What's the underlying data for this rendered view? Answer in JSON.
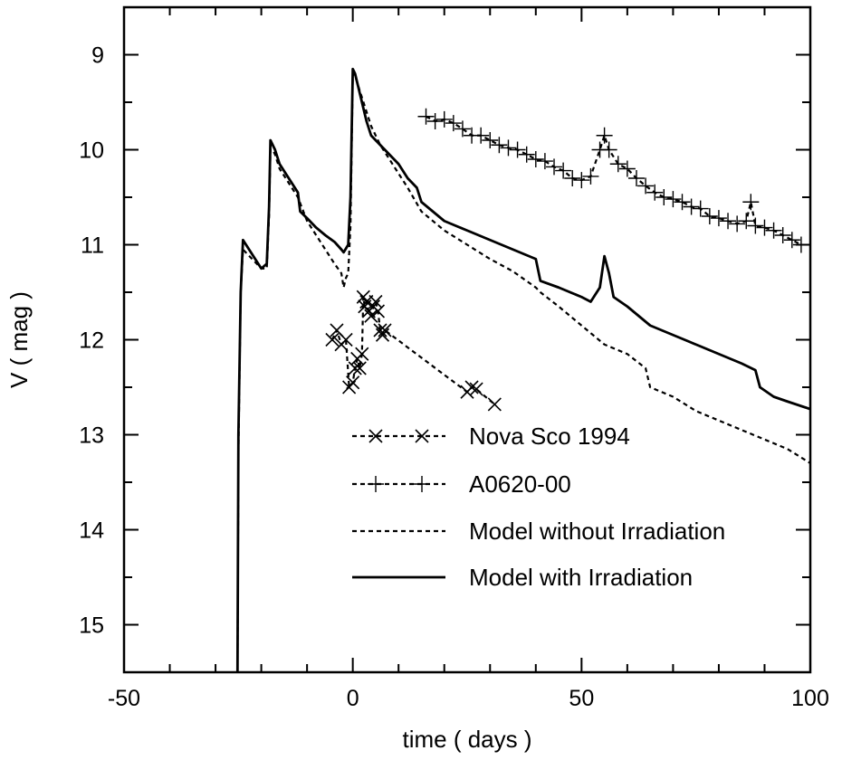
{
  "chart_data": {
    "type": "line",
    "xlabel": "time ( days )",
    "ylabel": "V ( mag )",
    "xlim": [
      -50,
      100
    ],
    "ylim": [
      15.5,
      8.5
    ],
    "y_inverted": true,
    "grid": false,
    "x_ticks": [
      -50,
      0,
      50,
      100
    ],
    "x_tick_labels": [
      "-50",
      "0",
      "50",
      "100"
    ],
    "y_ticks": [
      9,
      10,
      11,
      12,
      13,
      14,
      15
    ],
    "y_tick_labels": [
      "9",
      "10",
      "11",
      "12",
      "13",
      "14",
      "15"
    ],
    "legend_position": "lower-right",
    "series": [
      {
        "name": "Nova Sco 1994",
        "style": "dashed-x-markers",
        "x": [
          -4.5,
          -3.5,
          -2.5,
          -1.5,
          -0.8,
          0.0,
          0.5,
          1.0,
          1.5,
          2.0,
          2.3,
          2.6,
          3.0,
          3.5,
          4.0,
          4.5,
          5.0,
          5.5,
          6.0,
          6.5,
          7.0,
          25.0,
          26.0,
          27.0,
          31.0
        ],
        "y": [
          12.0,
          11.9,
          12.05,
          12.0,
          12.5,
          12.45,
          12.3,
          12.2,
          12.3,
          12.15,
          11.55,
          11.65,
          11.6,
          11.7,
          11.75,
          11.65,
          11.6,
          11.7,
          11.9,
          11.95,
          11.9,
          12.55,
          12.5,
          12.52,
          12.68
        ]
      },
      {
        "name": "A0620-00",
        "style": "dashed-plus-markers",
        "x": [
          16,
          18,
          20,
          22,
          24,
          26,
          28,
          30,
          32,
          34,
          36,
          38,
          40,
          42,
          44,
          46,
          48,
          50,
          52,
          54,
          55,
          56,
          58,
          60,
          62,
          64,
          66,
          68,
          70,
          72,
          74,
          76,
          78,
          80,
          82,
          84,
          86,
          87,
          88,
          90,
          92,
          94,
          96,
          98
        ],
        "y": [
          9.65,
          9.7,
          9.68,
          9.72,
          9.78,
          9.85,
          9.85,
          9.9,
          9.95,
          9.98,
          10.0,
          10.05,
          10.1,
          10.12,
          10.18,
          10.22,
          10.3,
          10.32,
          10.28,
          10.0,
          9.85,
          10.0,
          10.15,
          10.2,
          10.3,
          10.38,
          10.45,
          10.5,
          10.52,
          10.55,
          10.6,
          10.62,
          10.7,
          10.72,
          10.75,
          10.78,
          10.75,
          10.55,
          10.8,
          10.82,
          10.85,
          10.9,
          10.95,
          11.0
        ]
      },
      {
        "name": "Model without Irradiation",
        "style": "dashed",
        "x": [
          -25.2,
          -25.0,
          -24.5,
          -24,
          -22,
          -20,
          -18.8,
          -18.3,
          -18.0,
          -17.5,
          -17,
          -16,
          -14,
          -12,
          -10,
          -8,
          -6,
          -4,
          -2.5,
          -2,
          -1.5,
          -1,
          -0.5,
          0,
          0.5,
          1,
          2,
          3,
          4,
          6,
          8,
          10,
          12,
          15,
          20,
          25,
          30,
          35,
          40,
          41,
          45,
          50,
          55,
          60,
          64,
          65,
          70,
          75,
          80,
          85,
          90,
          95,
          100
        ],
        "y": [
          15.5,
          13.2,
          11.5,
          11.05,
          11.15,
          11.25,
          11.25,
          10.7,
          10.0,
          10.0,
          10.05,
          10.2,
          10.35,
          10.5,
          10.75,
          10.9,
          11.05,
          11.2,
          11.3,
          11.45,
          11.35,
          11.3,
          10.8,
          9.2,
          9.22,
          9.3,
          9.45,
          9.6,
          9.75,
          9.95,
          10.1,
          10.25,
          10.4,
          10.65,
          10.85,
          11.0,
          11.15,
          11.28,
          11.45,
          11.5,
          11.65,
          11.85,
          12.05,
          12.15,
          12.3,
          12.5,
          12.6,
          12.75,
          12.85,
          12.95,
          13.05,
          13.15,
          13.3
        ]
      },
      {
        "name": "Model with Irradiation",
        "style": "solid",
        "x": [
          -25.2,
          -25.0,
          -24.5,
          -24,
          -22,
          -20,
          -18.8,
          -18.3,
          -18.0,
          -17.5,
          -17,
          -16,
          -14,
          -12,
          -11.5,
          -10,
          -8,
          -6,
          -4,
          -2.5,
          -2,
          -1,
          -0.5,
          0,
          0.5,
          1,
          2,
          3,
          4,
          6,
          8,
          10,
          12,
          14,
          15,
          20,
          25,
          30,
          35,
          40,
          41,
          45,
          50,
          52,
          54,
          55,
          56,
          57,
          60,
          65,
          70,
          75,
          80,
          85,
          88,
          89,
          92,
          95,
          100
        ],
        "y": [
          15.5,
          13.0,
          11.5,
          10.95,
          11.1,
          11.25,
          11.2,
          10.6,
          9.9,
          9.95,
          10.0,
          10.15,
          10.3,
          10.45,
          10.65,
          10.72,
          10.82,
          10.9,
          10.97,
          11.05,
          11.08,
          11.0,
          10.5,
          9.15,
          9.2,
          9.3,
          9.5,
          9.7,
          9.85,
          9.95,
          10.05,
          10.15,
          10.3,
          10.4,
          10.55,
          10.75,
          10.85,
          10.95,
          11.05,
          11.15,
          11.38,
          11.45,
          11.55,
          11.6,
          11.45,
          11.12,
          11.3,
          11.55,
          11.65,
          11.85,
          11.95,
          12.05,
          12.15,
          12.25,
          12.32,
          12.5,
          12.6,
          12.65,
          12.73
        ]
      }
    ]
  }
}
